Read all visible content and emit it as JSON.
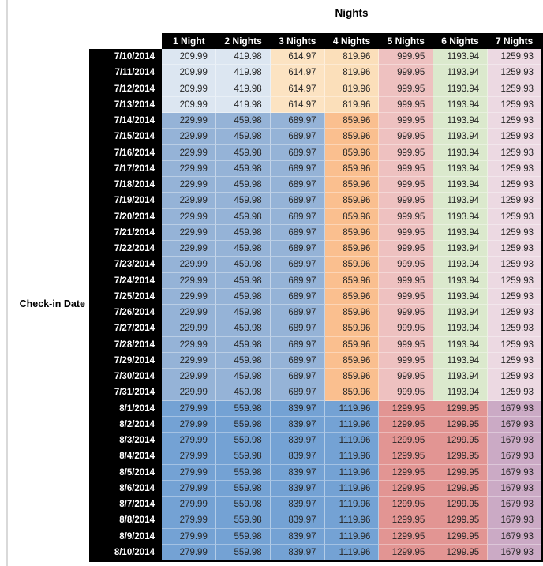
{
  "title": "Nights",
  "row_axis_label": "Check-in Date",
  "colors": {
    "header_bg": "#000000",
    "header_text": "#ffffff",
    "value_text": "#262626",
    "table_border": "#000000",
    "left_rail": "#d9d9d9"
  },
  "chart_data": {
    "type": "table",
    "title": "Nights",
    "row_label": "Check-in Date",
    "columns": [
      "1 Night",
      "2 Nights",
      "3 Nights",
      "4 Nights",
      "5 Nights",
      "6 Nights",
      "7 Nights"
    ],
    "row_groups": [
      {
        "band": "early",
        "dates": [
          "7/10/2014",
          "7/11/2014",
          "7/12/2014",
          "7/13/2014"
        ],
        "values": [
          "209.99",
          "419.98",
          "614.97",
          "819.96",
          "999.95",
          "1193.94",
          "1259.93"
        ]
      },
      {
        "band": "mid",
        "dates": [
          "7/14/2014",
          "7/15/2014",
          "7/16/2014",
          "7/17/2014",
          "7/18/2014",
          "7/19/2014",
          "7/20/2014",
          "7/21/2014",
          "7/22/2014",
          "7/23/2014",
          "7/24/2014",
          "7/25/2014",
          "7/26/2014",
          "7/27/2014",
          "7/28/2014",
          "7/29/2014",
          "7/30/2014",
          "7/31/2014"
        ],
        "values": [
          "229.99",
          "459.98",
          "689.97",
          "859.96",
          "999.95",
          "1193.94",
          "1259.93"
        ]
      },
      {
        "band": "august",
        "dates": [
          "8/1/2014",
          "8/2/2014",
          "8/3/2014",
          "8/4/2014",
          "8/5/2014",
          "8/6/2014",
          "8/7/2014",
          "8/8/2014",
          "8/9/2014",
          "8/10/2014"
        ],
        "values": [
          "279.99",
          "559.98",
          "839.97",
          "1119.96",
          "1299.95",
          "1299.95",
          "1679.93"
        ]
      }
    ],
    "band_colors": {
      "early": [
        "#dce6f1",
        "#dce6f1",
        "#fce3c2",
        "#fbdfba",
        "#eec1c0",
        "#dbe9cd",
        "#ecd9e2"
      ],
      "mid": [
        "#95b3d7",
        "#95b3d7",
        "#95b3d7",
        "#fabf8f",
        "#eec1c0",
        "#dbe9cd",
        "#ecd9e2"
      ],
      "august": [
        "#74a2d4",
        "#74a2d4",
        "#74a2d4",
        "#74a2d4",
        "#e29593",
        "#e29593",
        "#cbaac5"
      ]
    }
  }
}
